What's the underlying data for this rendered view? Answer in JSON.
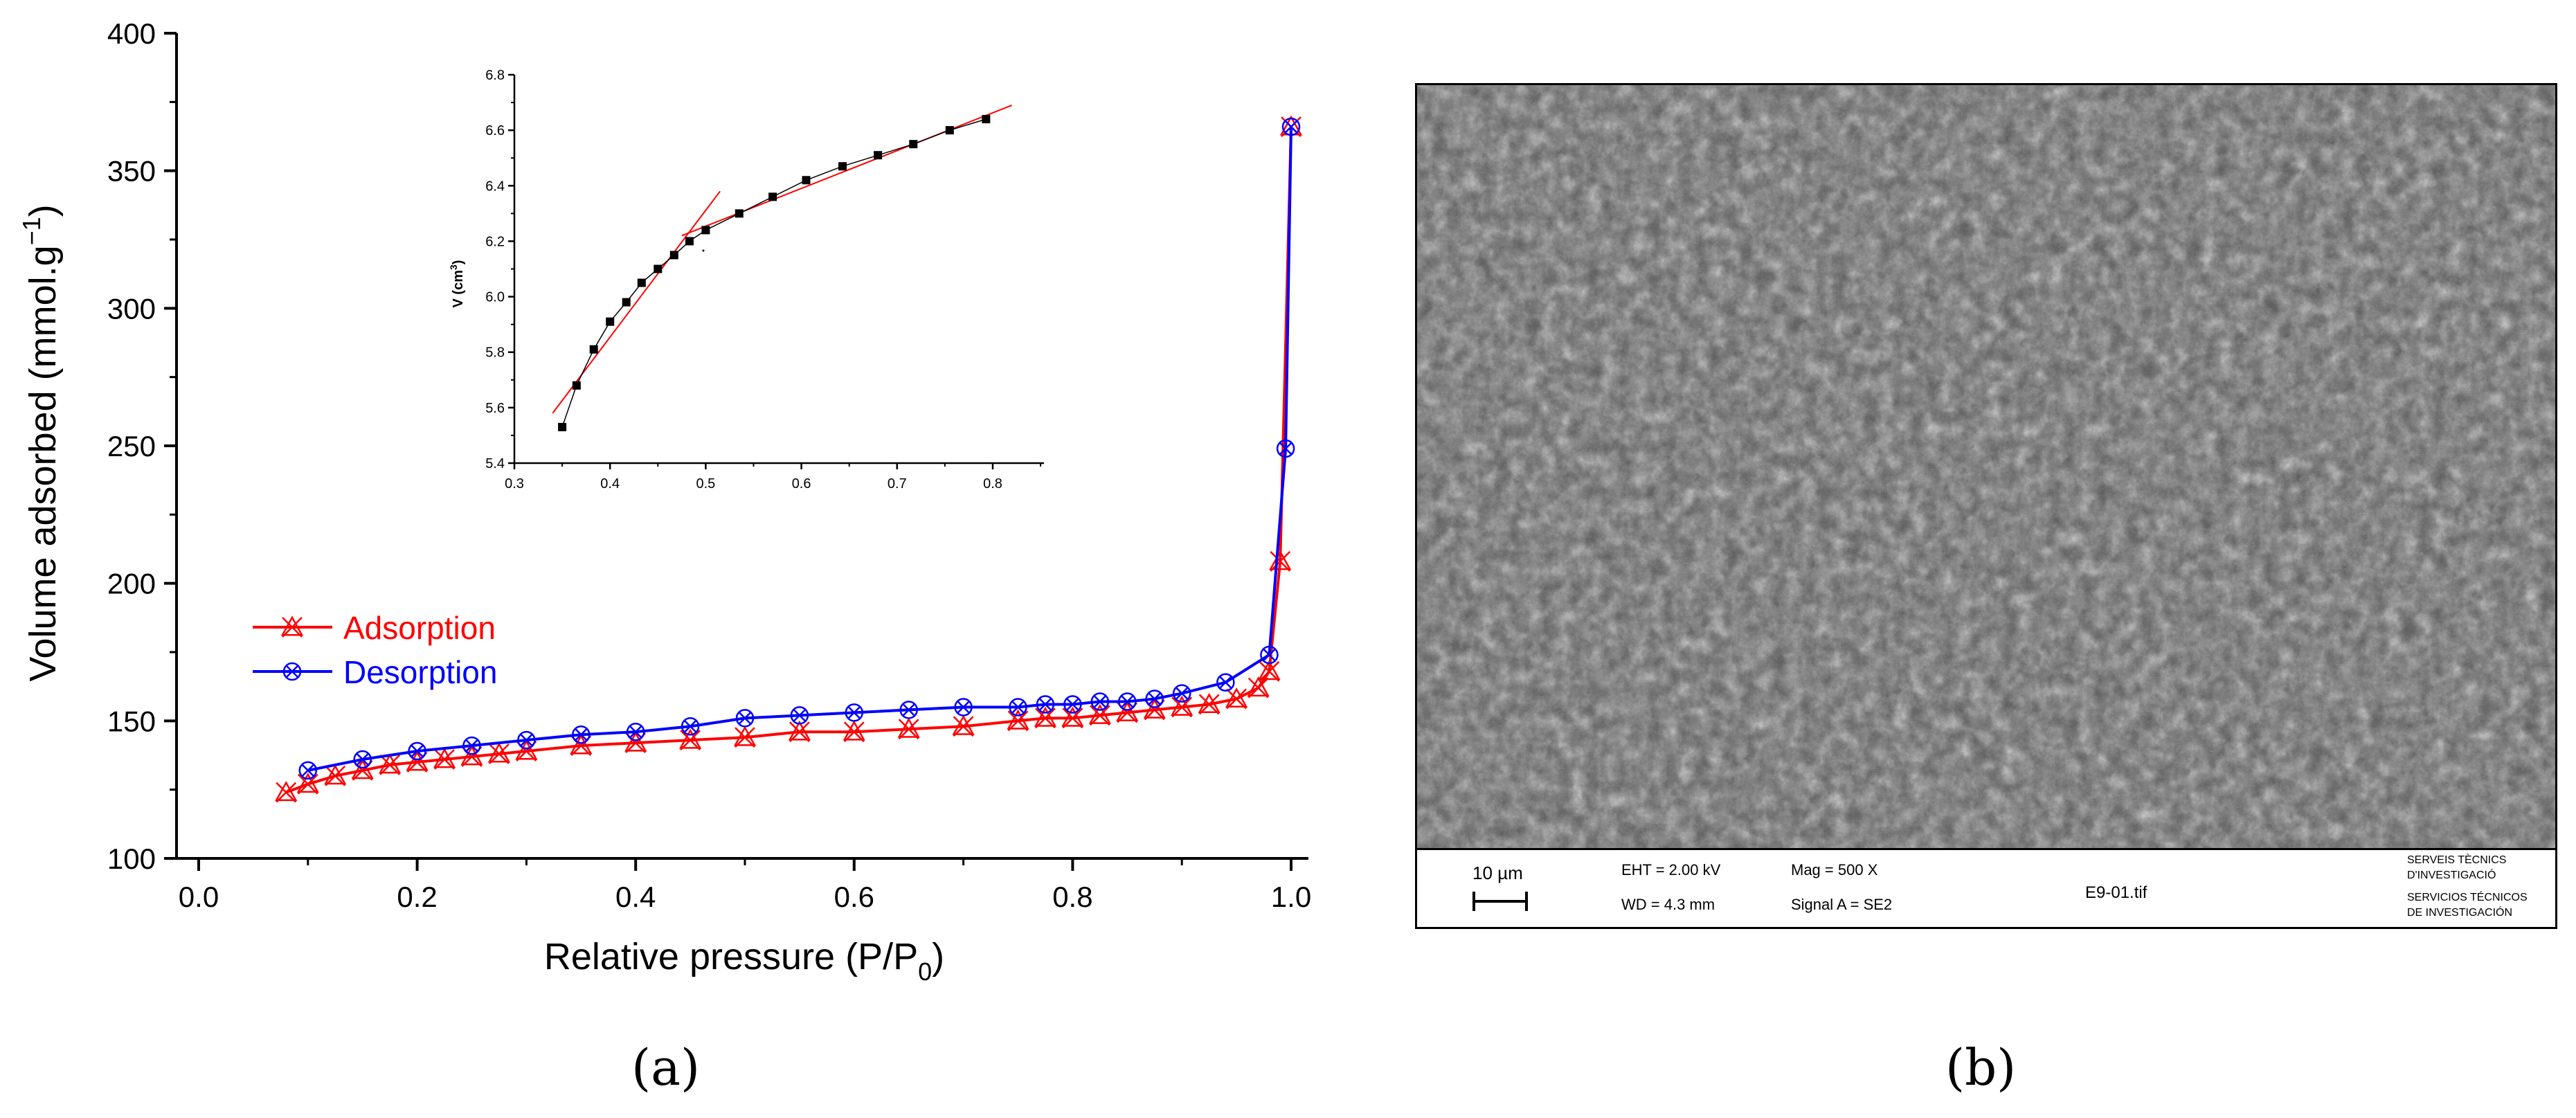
{
  "panel_a_label": "(a)",
  "panel_b_label": "(b)",
  "chart_data": [
    {
      "type": "line",
      "xlabel": "Relative pressure (P/P",
      "xlabel_sub": "0",
      "xlabel_close": ")",
      "ylabel": "Volume adsorbed (mmol.g",
      "ylabel_sup": "−1",
      "ylabel_close": ")",
      "xlim": [
        -0.02,
        1.02
      ],
      "ylim": [
        100,
        400
      ],
      "xticks": [
        "0.0",
        "0.2",
        "0.4",
        "0.6",
        "0.8",
        "1.0"
      ],
      "xtick_values": [
        0.0,
        0.2,
        0.4,
        0.6,
        0.8,
        1.0
      ],
      "yticks": [
        "100",
        "150",
        "200",
        "250",
        "300",
        "350",
        "400"
      ],
      "ytick_values": [
        100,
        150,
        200,
        250,
        300,
        350,
        400
      ],
      "legend_position": "middle-left",
      "series": [
        {
          "name": "Adsorption",
          "color": "#ff0000",
          "marker": "x-triangle",
          "x": [
            0.08,
            0.1,
            0.125,
            0.15,
            0.175,
            0.2,
            0.225,
            0.25,
            0.275,
            0.3,
            0.35,
            0.4,
            0.45,
            0.5,
            0.55,
            0.6,
            0.65,
            0.7,
            0.75,
            0.775,
            0.8,
            0.825,
            0.85,
            0.875,
            0.9,
            0.925,
            0.95,
            0.97,
            0.98,
            0.99,
            1.0
          ],
          "values": [
            124,
            127,
            130,
            132,
            134,
            135,
            136,
            137,
            138,
            139,
            141,
            142,
            143,
            144,
            146,
            146,
            147,
            148,
            150,
            151,
            151,
            152,
            153,
            154,
            155,
            156,
            158,
            162,
            168,
            208,
            366
          ]
        },
        {
          "name": "Desorption",
          "color": "#0000ff",
          "marker": "circle-x",
          "x": [
            1.0,
            0.995,
            0.98,
            0.94,
            0.9,
            0.875,
            0.85,
            0.825,
            0.8,
            0.775,
            0.75,
            0.7,
            0.65,
            0.6,
            0.55,
            0.5,
            0.45,
            0.4,
            0.35,
            0.3,
            0.25,
            0.2,
            0.15,
            0.1
          ],
          "values": [
            366,
            249,
            174,
            164,
            160,
            158,
            157,
            157,
            156,
            156,
            155,
            155,
            154,
            153,
            152,
            151,
            148,
            146,
            145,
            143,
            141,
            139,
            136,
            132
          ]
        }
      ]
    },
    {
      "type": "scatter",
      "ylabel": "V (cm",
      "ylabel_sup": "3",
      "ylabel_close": ")",
      "xlim": [
        0.3,
        0.85
      ],
      "ylim": [
        5.4,
        6.8
      ],
      "xticks": [
        "0.3",
        "0.4",
        "0.5",
        "0.6",
        "0.7",
        "0.8"
      ],
      "xtick_values": [
        0.3,
        0.4,
        0.5,
        0.6,
        0.7,
        0.8
      ],
      "yticks": [
        "5.4",
        "5.6",
        "5.8",
        "6.0",
        "6.2",
        "6.4",
        "6.6",
        "6.8"
      ],
      "ytick_values": [
        5.4,
        5.6,
        5.8,
        6.0,
        6.2,
        6.4,
        6.6,
        6.8
      ],
      "series": [
        {
          "color": "#000000",
          "x": [
            0.35,
            0.365,
            0.383,
            0.4,
            0.417,
            0.433,
            0.45,
            0.467,
            0.483,
            0.5,
            0.535,
            0.57,
            0.605,
            0.643,
            0.68,
            0.717,
            0.755,
            0.793
          ],
          "values": [
            5.53,
            5.68,
            5.81,
            5.91,
            5.98,
            6.05,
            6.1,
            6.15,
            6.2,
            6.24,
            6.3,
            6.36,
            6.42,
            6.47,
            6.51,
            6.55,
            6.6,
            6.64
          ]
        }
      ],
      "fit_lines": [
        {
          "color": "#ff0000",
          "x": [
            0.34,
            0.515
          ],
          "values": [
            5.58,
            6.38
          ]
        },
        {
          "color": "#ff0000",
          "x": [
            0.475,
            0.82
          ],
          "values": [
            6.22,
            6.69
          ]
        }
      ]
    }
  ],
  "sem": {
    "scale_label": "10 µm",
    "eht": "EHT =  2.00 kV",
    "wd": "WD =  4.3 mm",
    "mag": "Mag =    500 X",
    "signal": "Signal A = SE2",
    "filename": "E9-01.tif",
    "org_line1": "SERVEIS TÈCNICS",
    "org_line2": "D'INVESTIGACIÓ",
    "org_line3": "SERVICIOS TÉCNICOS",
    "org_line4": "DE  INVESTIGACIÓN"
  }
}
